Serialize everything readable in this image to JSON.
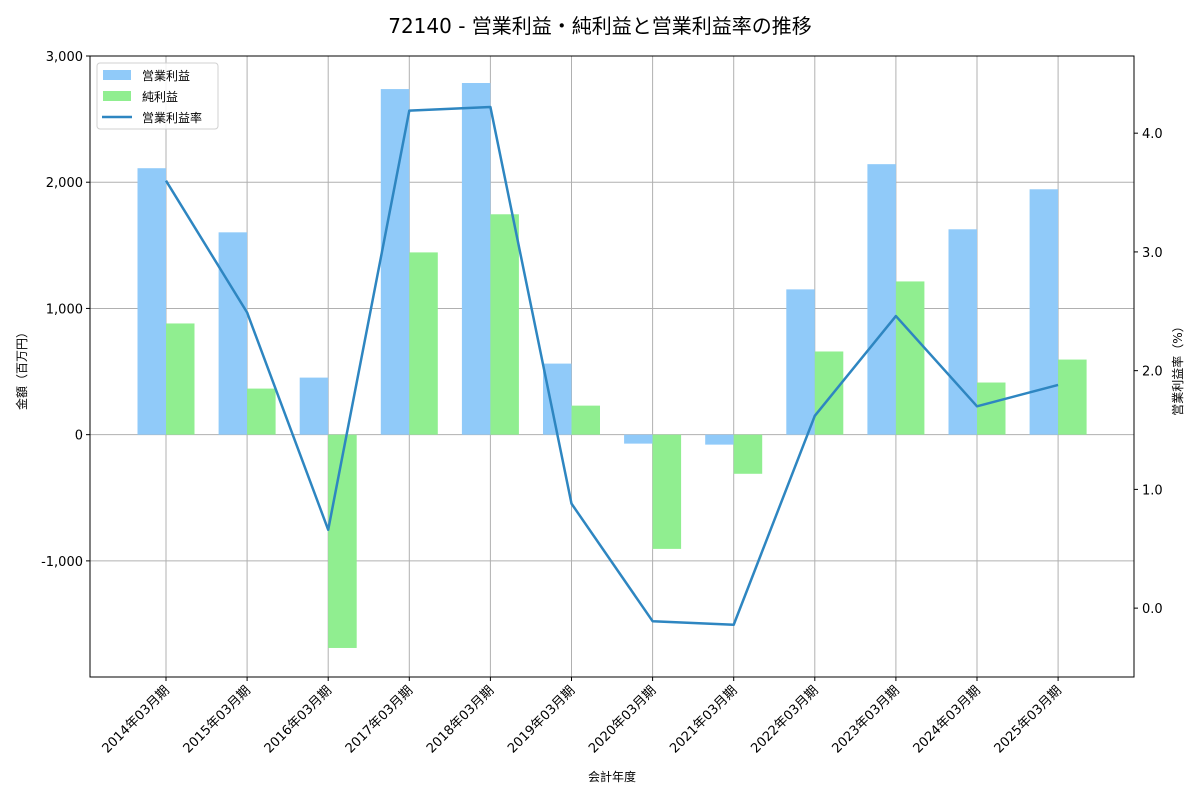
{
  "chart_data": {
    "type": "bar",
    "title": "72140 - 営業利益・純利益と営業利益率の推移",
    "xlabel": "会計年度",
    "ylabel": "金額（百万円）",
    "ylabel_right": "営業利益率（%）",
    "categories": [
      "2014年03月期",
      "2015年03月期",
      "2016年03月期",
      "2017年03月期",
      "2018年03月期",
      "2019年03月期",
      "2020年03月期",
      "2021年03月期",
      "2022年03月期",
      "2023年03月期",
      "2024年03月期",
      "2025年03月期"
    ],
    "series": [
      {
        "name": "営業利益",
        "type": "bar",
        "axis": "left",
        "color": "#90caf9",
        "values": [
          2111,
          1603,
          452,
          2738,
          2786,
          563,
          -71,
          -79,
          1151,
          2143,
          1627,
          1944
        ]
      },
      {
        "name": "純利益",
        "type": "bar",
        "axis": "left",
        "color": "#90ee90",
        "values": [
          881,
          365,
          -1690,
          1444,
          1746,
          230,
          -905,
          -310,
          659,
          1214,
          413,
          595
        ]
      },
      {
        "name": "営業利益率",
        "type": "line",
        "axis": "right",
        "color": "#2e86c1",
        "values": [
          3.6,
          2.49,
          0.66,
          4.19,
          4.22,
          0.88,
          -0.11,
          -0.14,
          1.62,
          2.46,
          1.7,
          1.88
        ]
      }
    ],
    "ylim": [
      -1920,
      3000
    ],
    "ylim_right": [
      -0.58,
      4.65
    ],
    "yticks": [
      3000,
      2000,
      1000,
      0,
      -1000
    ],
    "ytick_labels": [
      "3,000",
      "2,000",
      "1,000",
      "0",
      "-1,000"
    ],
    "yticks_right": [
      4.0,
      3.0,
      2.0,
      1.0,
      0.0
    ],
    "ytick_labels_right": [
      "4.0",
      "3.0",
      "2.0",
      "1.0",
      "0.0"
    ],
    "grid": true,
    "legend_position": "upper left"
  }
}
